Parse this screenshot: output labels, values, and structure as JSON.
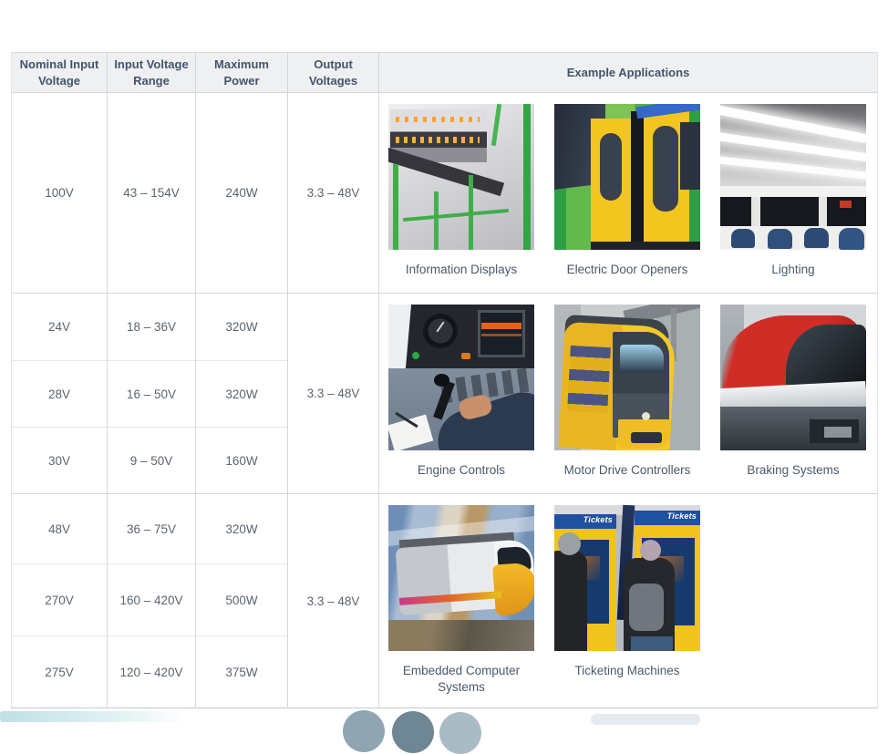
{
  "colors": {
    "header_bg": "#eef0f2",
    "header_text": "#44546a",
    "cell_text": "#5a656f",
    "grid_line": "#d2d7da"
  },
  "table": {
    "columns": [
      "Nominal Input Voltage",
      "Input Voltage Range",
      "Maximum Power",
      "Output Voltages",
      "Example Applications"
    ],
    "groups": [
      {
        "rows": [
          {
            "nominal": "100V",
            "range": "43 – 154V",
            "power": "240W"
          }
        ],
        "output": "3.3 – 48V",
        "applications": [
          {
            "caption": "Information Displays"
          },
          {
            "caption": "Electric Door Openers"
          },
          {
            "caption": "Lighting"
          }
        ]
      },
      {
        "rows": [
          {
            "nominal": "24V",
            "range": "18 – 36V",
            "power": "320W"
          },
          {
            "nominal": "28V",
            "range": "16 – 50V",
            "power": "320W"
          },
          {
            "nominal": "30V",
            "range": "9 – 50V",
            "power": "160W"
          }
        ],
        "output": "3.3 – 48V",
        "applications": [
          {
            "caption": "Engine Controls"
          },
          {
            "caption": "Motor Drive Controllers"
          },
          {
            "caption": "Braking Systems"
          }
        ]
      },
      {
        "rows": [
          {
            "nominal": "48V",
            "range": "36 – 75V",
            "power": "320W"
          },
          {
            "nominal": "270V",
            "range": "160 – 420V",
            "power": "500W"
          },
          {
            "nominal": "275V",
            "range": "120 – 420V",
            "power": "375W"
          }
        ],
        "output": "3.3 – 48V",
        "applications": [
          {
            "caption": "Embedded Computer Systems"
          },
          {
            "caption": "Ticketing Machines",
            "sign": "Tickets"
          }
        ]
      }
    ]
  }
}
